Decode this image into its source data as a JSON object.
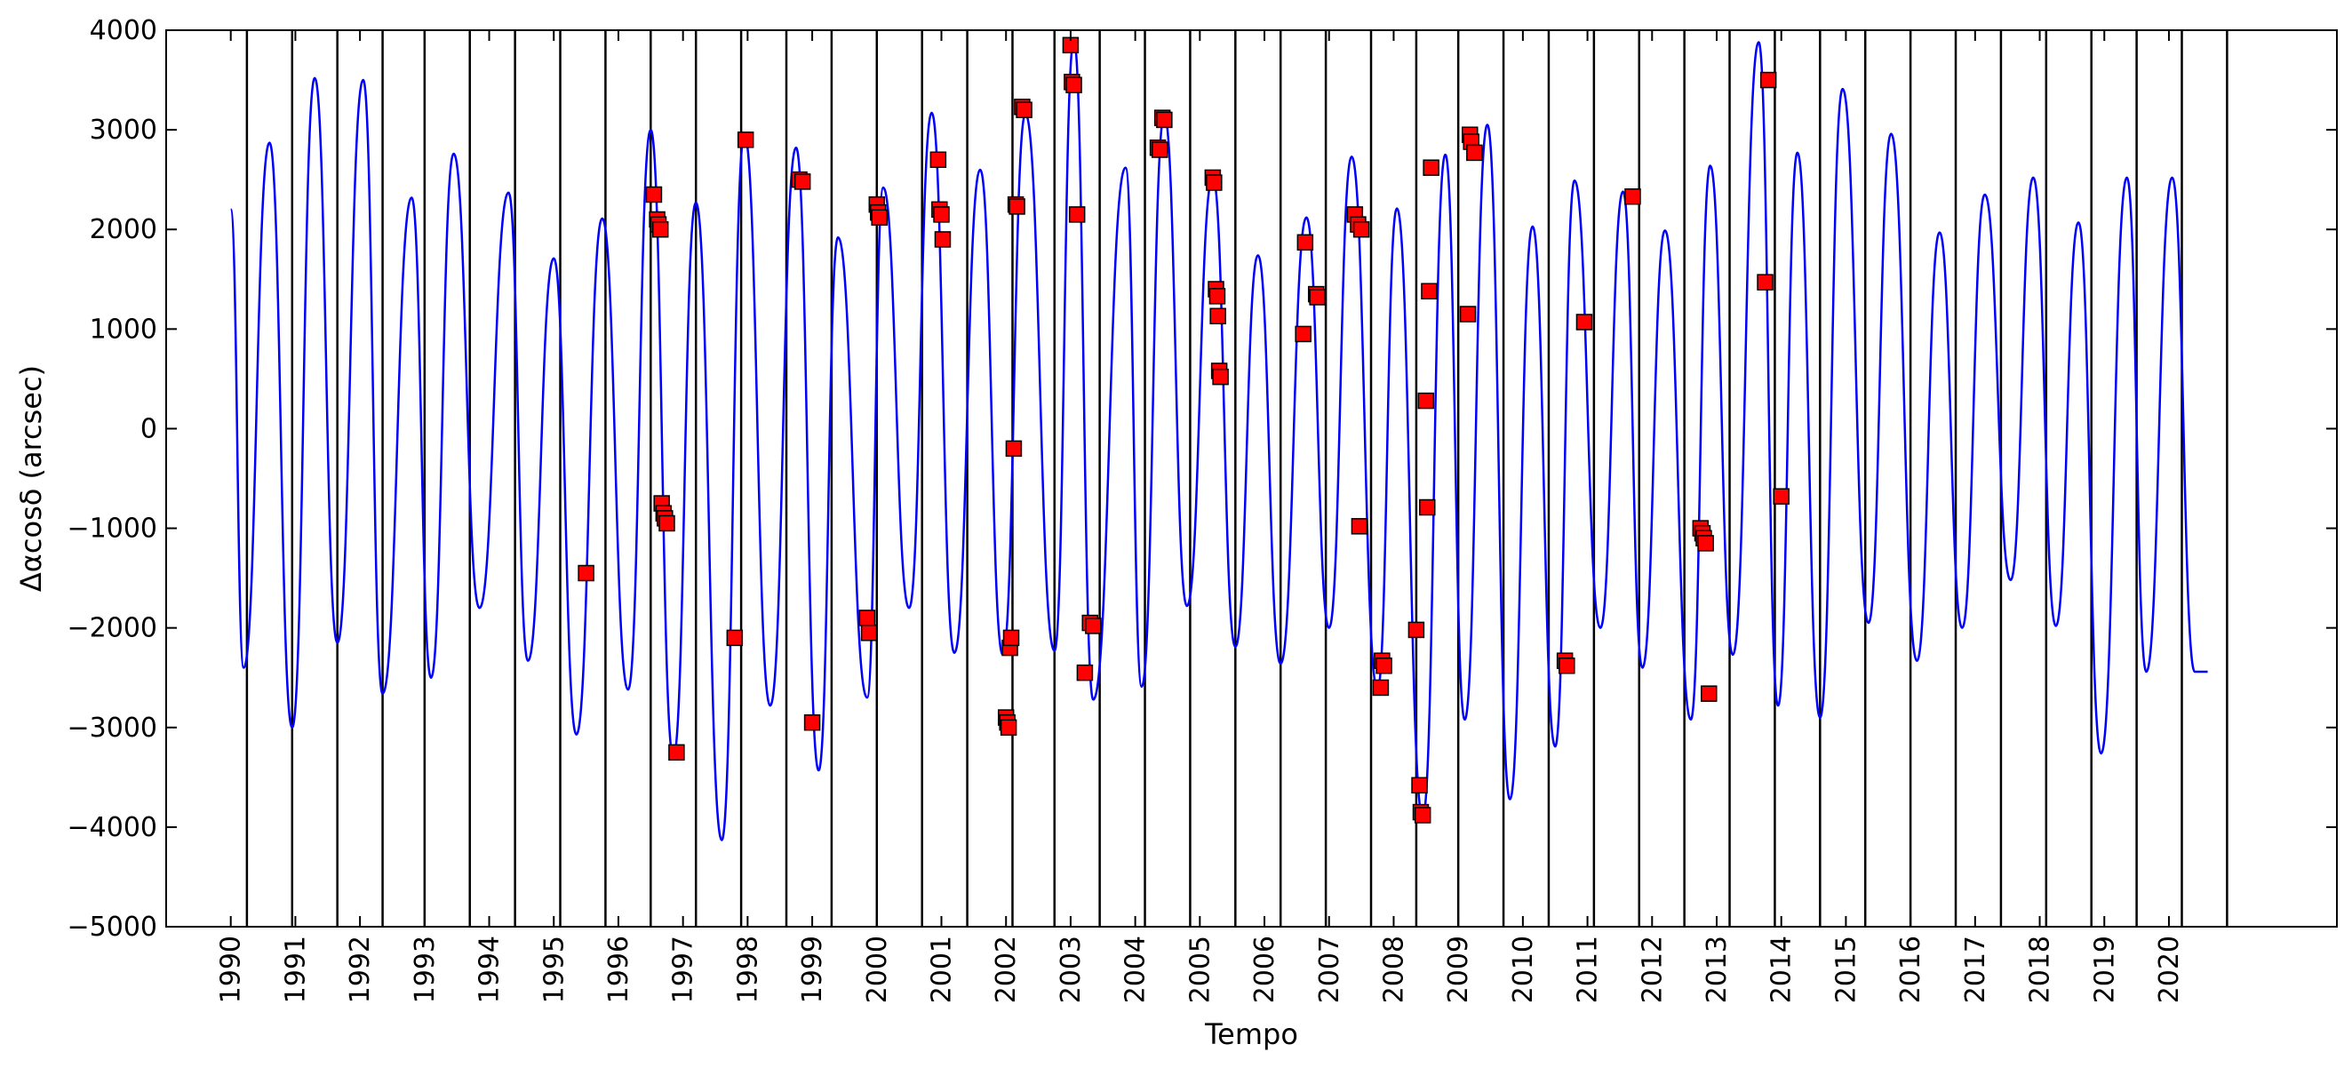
{
  "chart_data": {
    "type": "line",
    "title": "",
    "xlabel": "Tempo",
    "ylabel": "Δαcosδ (arcsec)",
    "xlim": [
      1989.0,
      2022.6
    ],
    "ylim": [
      -5000,
      4000
    ],
    "yticks": [
      -5000,
      -4000,
      -3000,
      -2000,
      -1000,
      0,
      1000,
      2000,
      3000,
      4000
    ],
    "xticks": [
      1990,
      1991,
      1992,
      1993,
      1994,
      1995,
      1996,
      1997,
      1998,
      1999,
      2000,
      2001,
      2002,
      2003,
      2004,
      2005,
      2006,
      2007,
      2008,
      2009,
      2010,
      2011,
      2012,
      2013,
      2014,
      2015,
      2016,
      2017,
      2018,
      2019,
      2020
    ],
    "grid": false,
    "colors": {
      "model_line": "#0000ff",
      "observations": "#ff0000",
      "season_lines": "#000000"
    },
    "vertical_lines": [
      1990.25,
      1990.95,
      1991.65,
      1992.35,
      1993.0,
      1993.7,
      1994.4,
      1995.1,
      1995.8,
      1996.5,
      1997.2,
      1997.9,
      1998.6,
      1999.3,
      2000.0,
      2000.7,
      2001.4,
      2002.1,
      2002.75,
      2003.45,
      2004.15,
      2004.85,
      2005.55,
      2006.25,
      2006.95,
      2007.65,
      2008.35,
      2009.0,
      2009.7,
      2010.4,
      2011.1,
      2011.8,
      2012.5,
      2013.2,
      2013.9,
      2014.6,
      2015.3,
      2016.0,
      2016.7,
      2017.4,
      2018.1,
      2018.8,
      2019.5,
      2020.2,
      2020.9
    ],
    "series": [
      {
        "type": "line",
        "x": [
          1990.0,
          1990.2,
          1990.6,
          1990.95,
          1991.3,
          1991.65,
          1992.05,
          1992.35,
          1992.8,
          1993.1,
          1993.45,
          1993.85,
          1994.3,
          1994.6,
          1995.0,
          1995.35,
          1995.75,
          1996.15,
          1996.5,
          1996.85,
          1997.2,
          1997.6,
          1997.95,
          1998.35,
          1998.75,
          1999.1,
          1999.4,
          1999.85,
          2000.1,
          2000.5,
          2000.85,
          2001.2,
          2001.6,
          2001.95,
          2002.3,
          2002.75,
          2003.05,
          2003.35,
          2003.85,
          2004.1,
          2004.45,
          2004.8,
          2005.2,
          2005.55,
          2005.9,
          2006.25,
          2006.65,
          2007.0,
          2007.35,
          2007.75,
          2008.05,
          2008.45,
          2008.8,
          2009.1,
          2009.45,
          2009.8,
          2010.15,
          2010.5,
          2010.8,
          2011.2,
          2011.55,
          2011.85,
          2012.2,
          2012.6,
          2012.9,
          2013.25,
          2013.65,
          2013.95,
          2014.25,
          2014.6,
          2014.95,
          2015.35,
          2015.7,
          2016.1,
          2016.45,
          2016.8,
          2017.15,
          2017.55,
          2017.9,
          2018.25,
          2018.6,
          2018.95,
          2019.35,
          2019.65,
          2020.05,
          2020.4,
          2020.6
        ],
        "y": [
          2200,
          -2400,
          2870,
          -3000,
          3520,
          -2150,
          3500,
          -2660,
          2320,
          -2500,
          2760,
          -1800,
          2370,
          -2330,
          1710,
          -3070,
          2110,
          -2620,
          3000,
          -3300,
          2270,
          -4130,
          2950,
          -2780,
          2820,
          -3430,
          1920,
          -2700,
          2420,
          -1800,
          3170,
          -2250,
          2600,
          -2270,
          3160,
          -2230,
          3900,
          -2720,
          2620,
          -2590,
          3150,
          -1780,
          2530,
          -2190,
          1740,
          -2360,
          2120,
          -2000,
          2730,
          -2620,
          2210,
          -3900,
          2750,
          -2920,
          3050,
          -3720,
          2030,
          -3190,
          2490,
          -2000,
          2380,
          -2400,
          1990,
          -2920,
          2640,
          -2270,
          3880,
          -2780,
          2770,
          -2900,
          3410,
          -1950,
          2960,
          -2330,
          1970,
          -2000,
          2350,
          -1520,
          2520,
          -1980,
          2070,
          -3260,
          2520,
          -2440,
          2520,
          -2440,
          -2440
        ]
      },
      {
        "type": "scatter",
        "marker": "square",
        "x": [
          1995.5,
          1996.55,
          1996.6,
          1996.62,
          1996.65,
          1996.67,
          1996.7,
          1996.72,
          1996.75,
          1996.9,
          1997.8,
          1997.97,
          1998.8,
          1998.85,
          1999.0,
          1999.85,
          1999.88,
          2000.0,
          2000.02,
          2000.04,
          2000.95,
          2000.97,
          2001.0,
          2001.02,
          2002.0,
          2002.02,
          2002.04,
          2002.06,
          2002.08,
          2002.12,
          2002.15,
          2002.17,
          2002.25,
          2002.28,
          2003.0,
          2003.02,
          2003.05,
          2003.1,
          2003.22,
          2003.3,
          2003.35,
          2004.35,
          2004.38,
          2004.42,
          2004.45,
          2005.2,
          2005.22,
          2005.25,
          2005.27,
          2005.28,
          2005.3,
          2005.32,
          2006.6,
          2006.63,
          2006.8,
          2006.82,
          2007.4,
          2007.45,
          2007.47,
          2007.5,
          2007.8,
          2007.82,
          2007.85,
          2008.35,
          2008.4,
          2008.42,
          2008.45,
          2008.5,
          2008.52,
          2008.55,
          2008.58,
          2009.15,
          2009.18,
          2009.2,
          2009.25,
          2010.65,
          2010.68,
          2010.95,
          2011.7,
          2012.75,
          2012.78,
          2012.8,
          2012.83,
          2012.88,
          2013.75,
          2013.8,
          2014.0
        ],
        "y": [
          -1450,
          2350,
          2100,
          2050,
          2000,
          -750,
          -850,
          -900,
          -950,
          -3250,
          -2100,
          2900,
          2500,
          2480,
          -2950,
          -1900,
          -2050,
          2250,
          2170,
          2120,
          2700,
          2200,
          2150,
          1900,
          -2900,
          -2950,
          -3000,
          -2200,
          -2100,
          -200,
          2250,
          2230,
          3230,
          3200,
          3850,
          3480,
          3450,
          2150,
          -2450,
          -1950,
          -1980,
          2820,
          2800,
          3120,
          3100,
          2520,
          2470,
          1400,
          1330,
          1130,
          580,
          520,
          950,
          1870,
          1350,
          1320,
          2150,
          2050,
          -980,
          2000,
          -2600,
          -2330,
          -2380,
          -2020,
          -3580,
          -3850,
          -3880,
          280,
          -790,
          1380,
          2620,
          1150,
          2950,
          2880,
          2770,
          -2330,
          -2380,
          1070,
          2330,
          -1000,
          -1050,
          -1100,
          -1150,
          -2660,
          1470,
          3500,
          -680
        ]
      }
    ]
  }
}
